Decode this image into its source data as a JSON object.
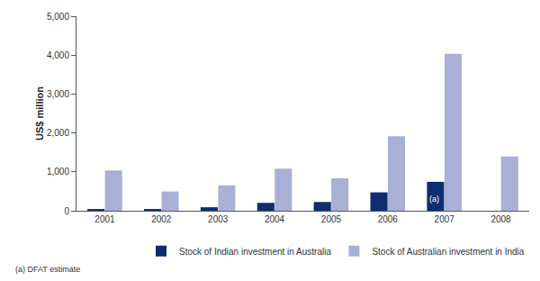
{
  "chart_data": {
    "type": "bar",
    "y_label": "US$ million",
    "categories": [
      "2001",
      "2002",
      "2003",
      "2004",
      "2005",
      "2006",
      "2007",
      "2008"
    ],
    "series": [
      {
        "name": "Stock of Indian investment in Australia",
        "color": "#0e2d6e",
        "values": [
          45,
          45,
          90,
          203,
          225,
          473,
          743,
          null
        ]
      },
      {
        "name": "Stock of Australian investment in India",
        "color": "#a8b0d6",
        "values": [
          1036,
          495,
          653,
          1081,
          833,
          1914,
          4032,
          1396
        ]
      }
    ],
    "ylim": [
      0,
      5000
    ],
    "yticks": [
      0,
      {
        "value": 1000,
        "label": "1,000"
      },
      {
        "value": 2000,
        "label": "2,000"
      },
      {
        "value": 3000,
        "label": "3,000"
      },
      {
        "value": 4000,
        "label": "4,000"
      },
      {
        "value": 5000,
        "label": "5,000"
      }
    ],
    "grid": false,
    "legend": "bottom",
    "annotations": [
      {
        "text": "(a)",
        "category": "2007"
      },
      {
        "text": "(a) DFAT estimate"
      }
    ]
  }
}
